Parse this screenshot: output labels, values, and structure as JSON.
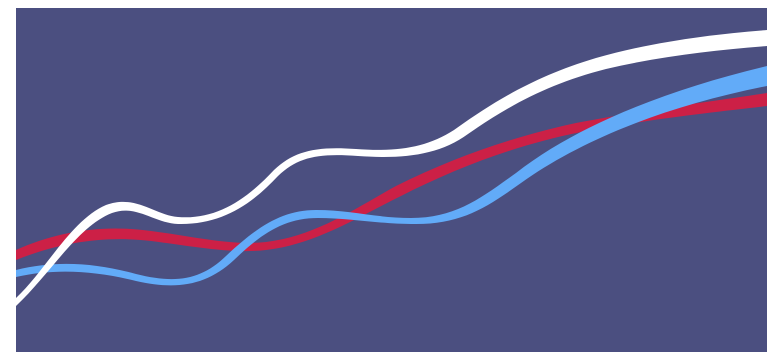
{
  "artwork": {
    "background_color": "#4B4F80",
    "ribbons": [
      {
        "name": "ribbon-white",
        "color": "#FFFFFF"
      },
      {
        "name": "ribbon-crimson",
        "color": "#CC2046"
      },
      {
        "name": "ribbon-blue",
        "color": "#62ABF8"
      }
    ]
  }
}
